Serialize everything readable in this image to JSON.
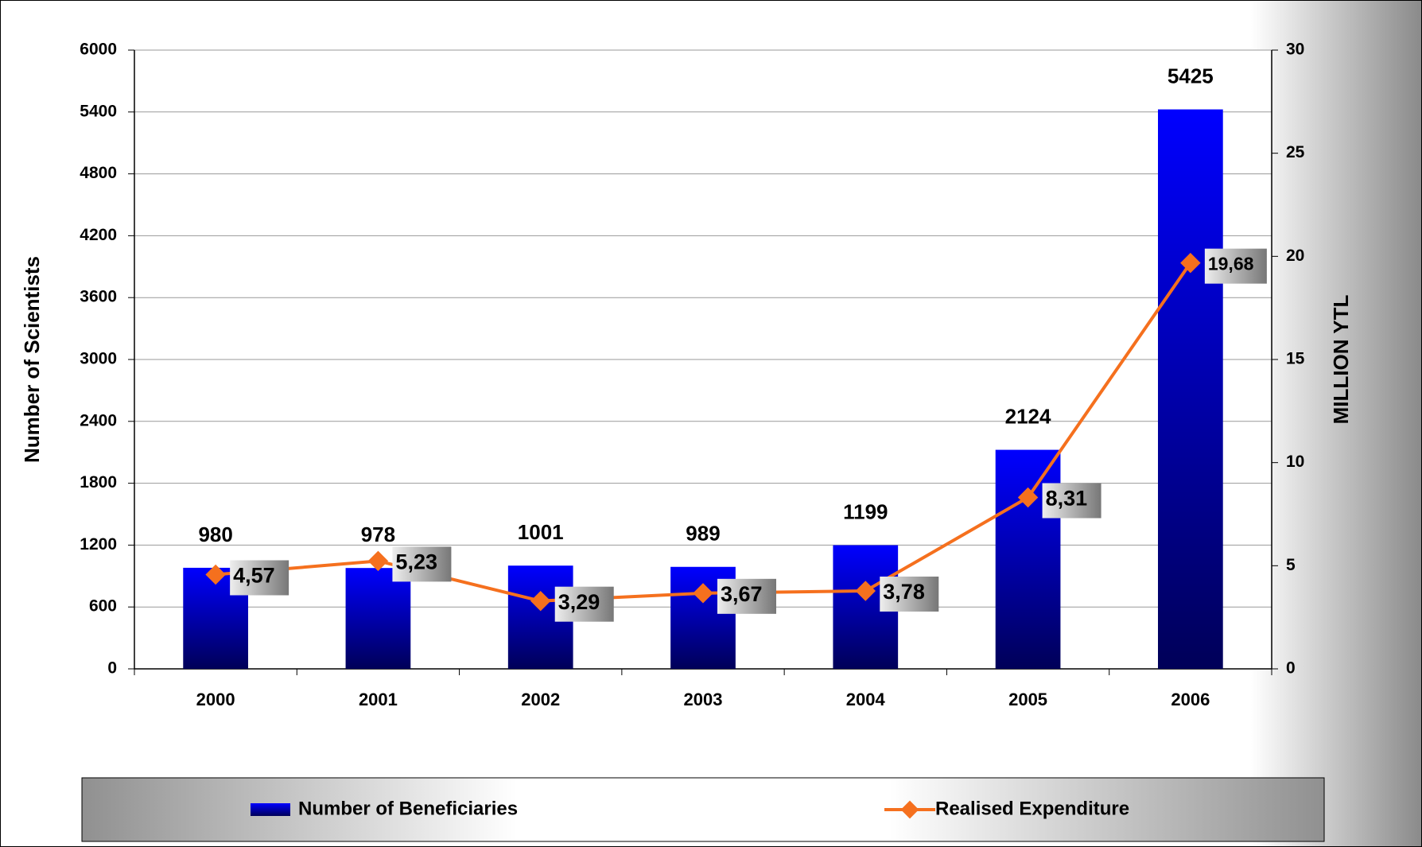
{
  "chart_data": {
    "type": "bar",
    "categories": [
      "2000",
      "2001",
      "2002",
      "2003",
      "2004",
      "2005",
      "2006"
    ],
    "series": [
      {
        "name": "Number of Beneficiaries",
        "color": "#0000ff",
        "type": "bar",
        "values": [
          980,
          978,
          1001,
          989,
          1199,
          2124,
          5425
        ]
      },
      {
        "name": "Realised Expenditure",
        "color": "#f5701e",
        "type": "line",
        "axis": "y2",
        "values": [
          4.57,
          5.23,
          3.29,
          3.67,
          3.78,
          8.31,
          19.68
        ],
        "value_labels": [
          "4,57",
          "5,23",
          "3,29",
          "3,67",
          "3,78",
          "8,31",
          "19,68"
        ]
      }
    ],
    "ylabel": "Number of Scientists",
    "y2label": "MILLION YTL",
    "ylim": [
      0,
      6000
    ],
    "yticks": [
      0,
      600,
      1200,
      1800,
      2400,
      3000,
      3600,
      4200,
      4800,
      5400,
      6000
    ],
    "y2lim": [
      0,
      30
    ],
    "y2ticks": [
      0,
      5,
      10,
      15,
      20,
      25,
      30
    ],
    "grid": true,
    "legend": "bottom"
  }
}
